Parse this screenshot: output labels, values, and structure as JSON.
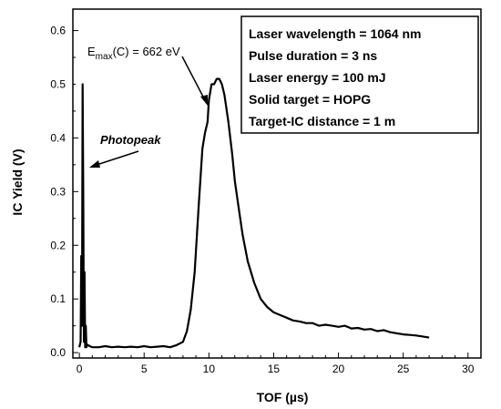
{
  "chart_data": {
    "type": "line",
    "xlabel": "TOF (µs)",
    "ylabel": "IC Yield (V)",
    "xlim": [
      -0.5,
      31
    ],
    "ylim": [
      -0.01,
      0.64
    ],
    "x_ticks": [
      0,
      5,
      10,
      15,
      20,
      25,
      30
    ],
    "y_ticks": [
      0.0,
      0.1,
      0.2,
      0.3,
      0.4,
      0.5,
      0.6
    ],
    "series": [
      {
        "color": "#000000",
        "x": [
          0.0,
          0.1,
          0.15,
          0.2,
          0.25,
          0.3,
          0.35,
          0.4,
          0.45,
          0.5,
          0.55,
          0.6,
          0.8,
          1.0,
          1.5,
          2.0,
          2.5,
          3.0,
          3.5,
          4.0,
          4.5,
          5.0,
          5.5,
          6.0,
          6.5,
          7.0,
          7.5,
          8.0,
          8.3,
          8.6,
          8.9,
          9.2,
          9.5,
          9.7,
          9.9,
          10.0,
          10.2,
          10.4,
          10.6,
          10.8,
          11.0,
          11.2,
          11.5,
          11.8,
          12.0,
          12.3,
          12.6,
          13.0,
          13.5,
          14.0,
          14.5,
          15.0,
          15.5,
          16.0,
          16.5,
          17.0,
          17.5,
          18.0,
          18.5,
          19.0,
          19.5,
          20.0,
          20.5,
          21.0,
          21.5,
          22.0,
          22.5,
          23.0,
          23.5,
          24.0,
          24.5,
          25.0,
          25.5,
          26.0,
          26.5,
          27.0
        ],
        "y": [
          0.01,
          0.02,
          0.18,
          0.05,
          0.5,
          0.3,
          0.02,
          0.15,
          0.01,
          0.05,
          0.01,
          0.015,
          0.012,
          0.01,
          0.01,
          0.012,
          0.01,
          0.011,
          0.01,
          0.011,
          0.01,
          0.012,
          0.01,
          0.011,
          0.012,
          0.01,
          0.014,
          0.02,
          0.04,
          0.08,
          0.15,
          0.27,
          0.38,
          0.41,
          0.43,
          0.47,
          0.5,
          0.5,
          0.51,
          0.51,
          0.5,
          0.48,
          0.43,
          0.37,
          0.32,
          0.27,
          0.22,
          0.17,
          0.13,
          0.1,
          0.085,
          0.075,
          0.07,
          0.065,
          0.06,
          0.058,
          0.055,
          0.055,
          0.05,
          0.052,
          0.05,
          0.048,
          0.05,
          0.045,
          0.046,
          0.043,
          0.044,
          0.04,
          0.042,
          0.038,
          0.036,
          0.034,
          0.033,
          0.032,
          0.03,
          0.028
        ]
      }
    ],
    "annotations": {
      "peak_label_main": "E",
      "peak_label_sub": "max",
      "peak_label_rest": "(C) = 662 eV",
      "photopeak": "Photopeak"
    },
    "info_box": [
      "Laser wavelength = 1064 nm",
      "Pulse duration = 3 ns",
      "Laser energy = 100 mJ",
      "Solid target = HOPG",
      "Target-IC distance = 1 m"
    ]
  }
}
